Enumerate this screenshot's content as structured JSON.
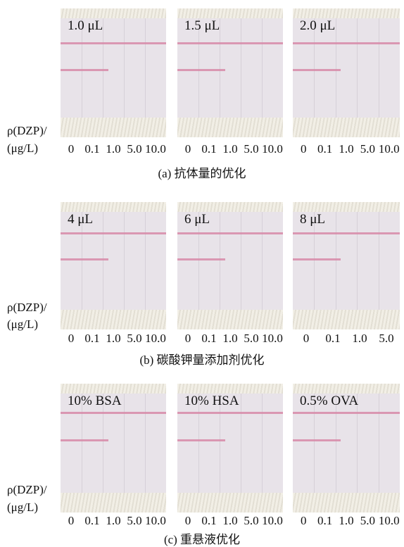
{
  "sections": [
    {
      "photos": [
        {
          "label": "1.0 μL",
          "concentrations": [
            "0",
            "0.1",
            "1.0",
            "5.0",
            "10.0"
          ]
        },
        {
          "label": "1.5 μL",
          "concentrations": [
            "0",
            "0.1",
            "1.0",
            "5.0",
            "10.0"
          ]
        },
        {
          "label": "2.0 μL",
          "concentrations": [
            "0",
            "0.1",
            "1.0",
            "5.0",
            "10.0"
          ]
        }
      ],
      "y_label": [
        "ρ(DZP)/",
        "(μg/L)"
      ],
      "caption": "(a)  抗体量的优化"
    },
    {
      "photos": [
        {
          "label": "4 μL",
          "concentrations": [
            "0",
            "0.1",
            "1.0",
            "5.0",
            "10.0"
          ]
        },
        {
          "label": "6 μL",
          "concentrations": [
            "0",
            "0.1",
            "1.0",
            "5.0",
            "10.0"
          ]
        },
        {
          "label": "8 μL",
          "concentrations": [
            "0",
            "0.1",
            "1.0",
            "5.0"
          ]
        }
      ],
      "y_label": [
        "ρ(DZP)/",
        "(μg/L)"
      ],
      "caption": "(b)  碳酸钾量添加剂优化"
    },
    {
      "photos": [
        {
          "label": "10% BSA",
          "concentrations": [
            "0",
            "0.1",
            "1.0",
            "5.0",
            "10.0"
          ]
        },
        {
          "label": "10% HSA",
          "concentrations": [
            "0",
            "0.1",
            "1.0",
            "5.0",
            "10.0"
          ]
        },
        {
          "label": "0.5% OVA",
          "concentrations": [
            "0",
            "0.1",
            "1.0",
            "5.0",
            "10.0"
          ]
        }
      ],
      "y_label": [
        "ρ(DZP)/",
        "(μg/L)"
      ],
      "caption": "(c)  重悬液优化"
    }
  ]
}
